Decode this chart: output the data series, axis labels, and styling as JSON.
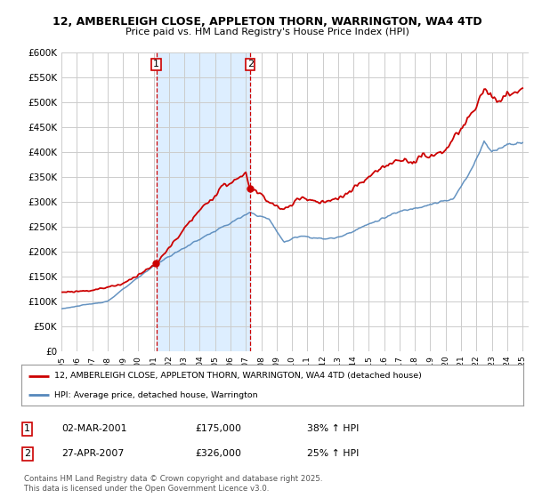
{
  "title": "12, AMBERLEIGH CLOSE, APPLETON THORN, WARRINGTON, WA4 4TD",
  "subtitle": "Price paid vs. HM Land Registry's House Price Index (HPI)",
  "legend_label_red": "12, AMBERLEIGH CLOSE, APPLETON THORN, WARRINGTON, WA4 4TD (detached house)",
  "legend_label_blue": "HPI: Average price, detached house, Warrington",
  "transaction1_date": "02-MAR-2001",
  "transaction1_price": "£175,000",
  "transaction1_hpi": "38% ↑ HPI",
  "transaction2_date": "27-APR-2007",
  "transaction2_price": "£326,000",
  "transaction2_hpi": "25% ↑ HPI",
  "footer": "Contains HM Land Registry data © Crown copyright and database right 2025.\nThis data is licensed under the Open Government Licence v3.0.",
  "red_color": "#cc0000",
  "blue_color": "#5588bb",
  "shade_color": "#ddeeff",
  "grid_color": "#cccccc",
  "bg_color": "#ffffff",
  "ylim": [
    0,
    600000
  ],
  "yticks": [
    0,
    50000,
    100000,
    150000,
    200000,
    250000,
    300000,
    350000,
    400000,
    450000,
    500000,
    550000,
    600000
  ],
  "t1_year": 2001.17,
  "t2_year": 2007.29,
  "t1_price": 175000,
  "t2_price": 326000
}
